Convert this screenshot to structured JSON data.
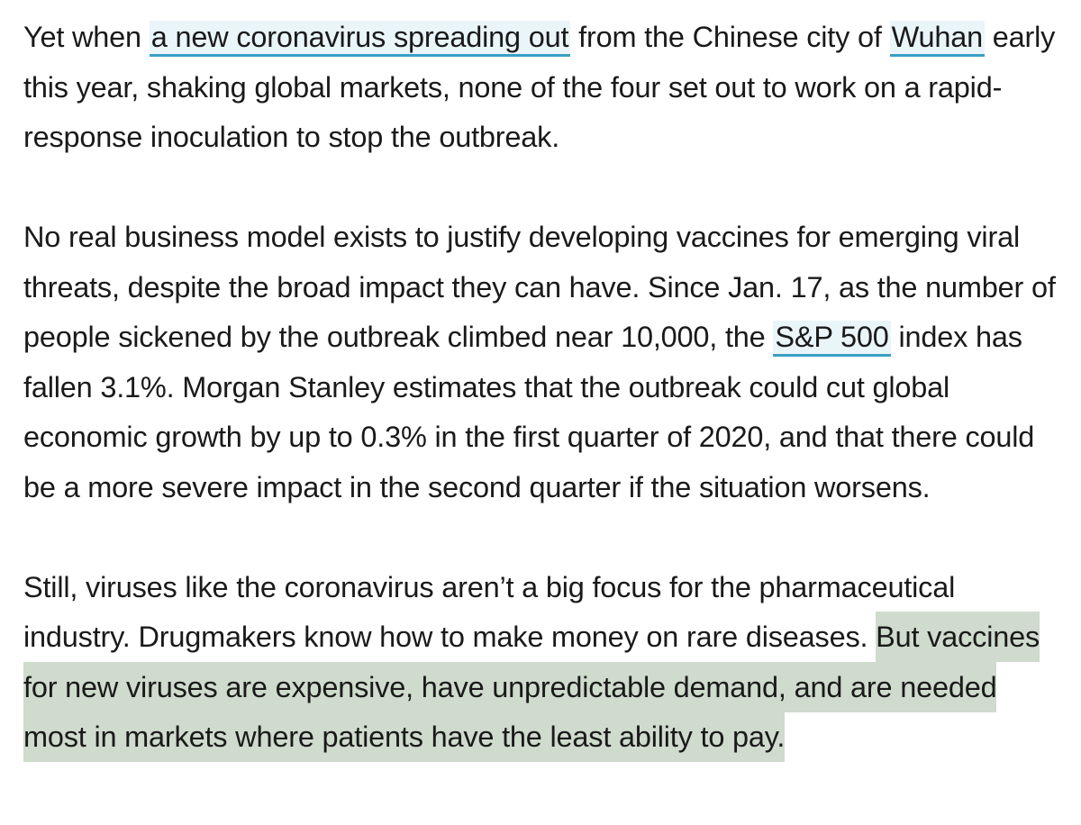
{
  "paragraphs": [
    {
      "segments": [
        {
          "text": "Yet when "
        },
        {
          "text": "a new coronavirus spreading out",
          "link": true
        },
        {
          "text": " from the Chinese city of "
        },
        {
          "text": "Wuhan",
          "link": true
        },
        {
          "text": " early this year, shaking global markets, none of the four set out to work on a rapid-response inoculation to stop the outbreak."
        }
      ]
    },
    {
      "segments": [
        {
          "text": "No real business model exists to justify developing vaccines for emerging viral threats, despite the broad impact they can have. Since Jan. 17, as the number of people sickened by the outbreak climbed near 10,000, the "
        },
        {
          "text": "S&P 500",
          "link": true
        },
        {
          "text": " index has fallen 3.1%. Morgan Stanley estimates that the outbreak could cut global economic growth by up to 0.3% in the first quarter of 2020, and that there could be a more severe impact in the second quarter if the situation worsens."
        }
      ]
    },
    {
      "segments": [
        {
          "text": "Still, viruses like the coronavirus aren’t a big focus for the pharmaceutical industry. Drugmakers know how to make money on rare diseases. "
        },
        {
          "text": "But vaccines for new viruses are expensive, have unpredictable demand, and are needed most in markets where patients have the least ability to pay.",
          "highlight": true
        }
      ]
    }
  ],
  "colors": {
    "text": "#1a1a1a",
    "link_underline": "#3a9fc4",
    "link_background": "#eaf5fa",
    "highlight": "#cfdbcd"
  }
}
